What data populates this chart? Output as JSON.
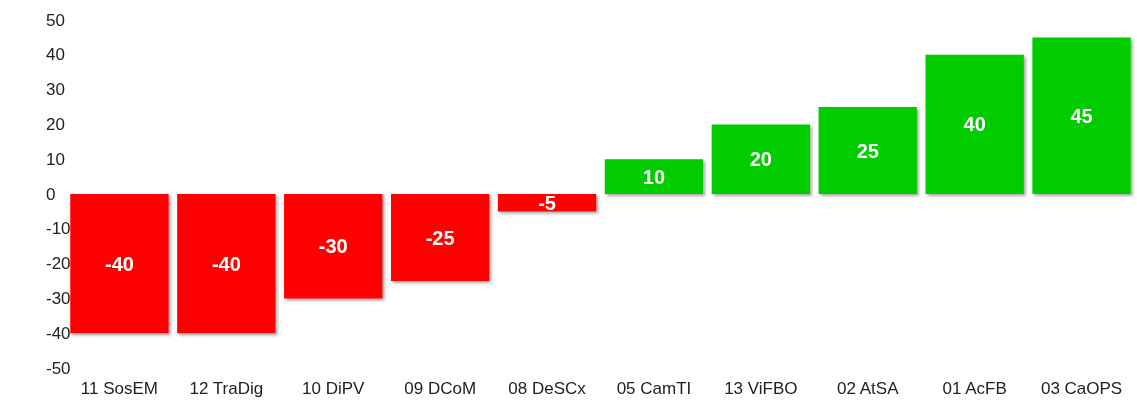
{
  "chart_data": {
    "type": "bar",
    "categories": [
      "11 SosEM",
      "12 TraDig",
      "10 DiPV",
      "09 DCoM",
      "08 DeSCx",
      "05 CamTI",
      "13 ViFBO",
      "02 AtSA",
      "01 AcFB",
      "03 CaOPS"
    ],
    "values": [
      -40,
      -40,
      -30,
      -25,
      -5,
      10,
      20,
      25,
      40,
      45
    ],
    "colors": [
      "#ff0000",
      "#ff0000",
      "#ff0000",
      "#ff0000",
      "#ff0000",
      "#00cc00",
      "#00cc00",
      "#00cc00",
      "#00cc00",
      "#00cc00"
    ],
    "ylim": [
      -50,
      50
    ],
    "yticks": [
      -50,
      -40,
      -30,
      -20,
      -10,
      0,
      10,
      20,
      30,
      40,
      50
    ],
    "grid": false,
    "data_labels": true
  }
}
